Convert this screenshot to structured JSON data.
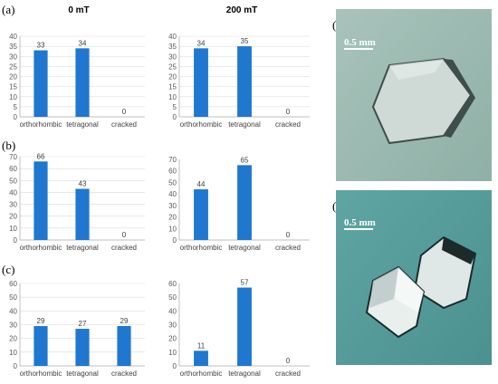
{
  "labels": {
    "a": "(a)",
    "b": "(b)",
    "c": "(c)",
    "d": "(d)",
    "e": "(e)"
  },
  "column_titles": [
    "0 mT",
    "200 mT"
  ],
  "photos": {
    "d_scale": "0.5 mm",
    "e_scale": "0.5 mm"
  },
  "colors": {
    "bar": "#1f77d0",
    "axis": "#bfbfbf",
    "grid": "#d9d9d9"
  },
  "chart_data": [
    {
      "type": "bar",
      "panel": "(a)",
      "title": "0 mT",
      "categories": [
        "orthorhombic",
        "tetragonal",
        "cracked"
      ],
      "values": [
        33,
        34,
        0
      ],
      "ylim": [
        0,
        40
      ],
      "yticks": [
        0,
        5,
        10,
        15,
        20,
        25,
        30,
        35,
        40
      ],
      "grid": true
    },
    {
      "type": "bar",
      "panel": "(a)",
      "title": "200 mT",
      "categories": [
        "orthorhombic",
        "tetragonal",
        "cracked"
      ],
      "values": [
        34,
        35,
        0
      ],
      "ylim": [
        0,
        40
      ],
      "yticks": [
        0,
        5,
        10,
        15,
        20,
        25,
        30,
        35,
        40
      ],
      "grid": true
    },
    {
      "type": "bar",
      "panel": "(b)",
      "categories": [
        "orthorhombic",
        "tetragonal",
        "cracked"
      ],
      "values": [
        66,
        43,
        0
      ],
      "ylim": [
        0,
        70
      ],
      "yticks": [
        0,
        10,
        20,
        30,
        40,
        50,
        60,
        70
      ],
      "grid": true
    },
    {
      "type": "bar",
      "panel": "(b)",
      "categories": [
        "orthorhombic",
        "tetragonal",
        "cracked"
      ],
      "values": [
        44,
        65,
        0
      ],
      "ylim": [
        0,
        70
      ],
      "yticks": [
        0,
        10,
        20,
        30,
        40,
        50,
        60,
        70
      ],
      "grid": false
    },
    {
      "type": "bar",
      "panel": "(c)",
      "categories": [
        "orthorhombic",
        "tetragonal",
        "cracked"
      ],
      "values": [
        29,
        27,
        29
      ],
      "ylim": [
        0,
        60
      ],
      "yticks": [
        0,
        10,
        20,
        30,
        40,
        50,
        60
      ],
      "grid": true
    },
    {
      "type": "bar",
      "panel": "(c)",
      "categories": [
        "orthorhombic",
        "tetragonal",
        "cracked"
      ],
      "values": [
        11,
        57,
        0
      ],
      "ylim": [
        0,
        60
      ],
      "yticks": [
        0,
        10,
        20,
        30,
        40,
        50,
        60
      ],
      "grid": false
    }
  ]
}
